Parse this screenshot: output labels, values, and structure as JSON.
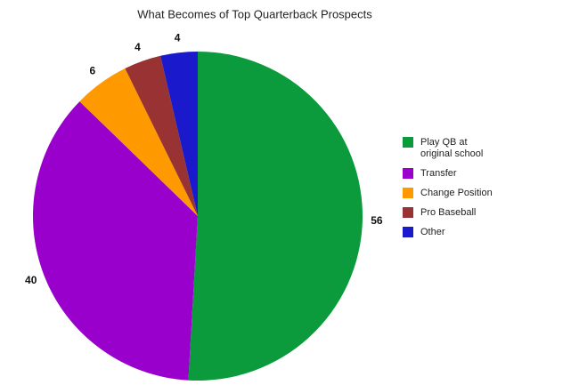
{
  "chart_data": {
    "type": "pie",
    "title": "What Becomes of Top Quarterback Prospects",
    "categories": [
      "Play QB at original school",
      "Transfer",
      "Change Position",
      "Pro Baseball",
      "Other"
    ],
    "values": [
      56,
      40,
      6,
      4,
      4
    ],
    "colors": [
      "#0b9a3c",
      "#9900cc",
      "#ff9900",
      "#993333",
      "#1a1acc"
    ],
    "legend": "right"
  }
}
